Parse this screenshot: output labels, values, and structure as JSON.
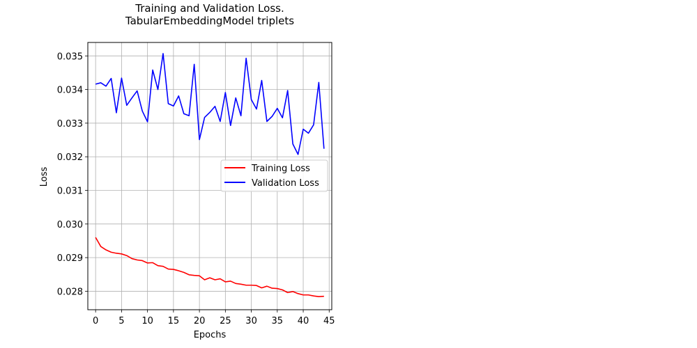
{
  "chart_data": {
    "type": "line",
    "title": [
      "Training and Validation Loss.",
      "TabularEmbeddingModel triplets"
    ],
    "xlabel": "Epochs",
    "ylabel": "Loss",
    "xlim": [
      -1.5,
      45.5
    ],
    "ylim": [
      0.02745,
      0.0354
    ],
    "x_ticks": [
      0,
      5,
      10,
      15,
      20,
      25,
      30,
      35,
      40,
      45
    ],
    "y_ticks": [
      0.028,
      0.029,
      0.03,
      0.031,
      0.032,
      0.033,
      0.034,
      0.035
    ],
    "y_tick_labels": [
      "0.028",
      "0.029",
      "0.030",
      "0.031",
      "0.032",
      "0.033",
      "0.034",
      "0.035"
    ],
    "grid": true,
    "legend": "center-right",
    "series": [
      {
        "name": "Training Loss",
        "color": "#ff0000",
        "x": [
          0,
          1,
          2,
          3,
          4,
          5,
          6,
          7,
          8,
          9,
          10,
          11,
          12,
          13,
          14,
          15,
          16,
          17,
          18,
          19,
          20,
          21,
          22,
          23,
          24,
          25,
          26,
          27,
          28,
          29,
          30,
          31,
          32,
          33,
          34,
          35,
          36,
          37,
          38,
          39,
          40,
          41,
          42,
          43,
          44
        ],
        "values": [
          0.0296,
          0.02933,
          0.02923,
          0.02916,
          0.02913,
          0.02911,
          0.02906,
          0.02897,
          0.02893,
          0.02891,
          0.02884,
          0.02885,
          0.02876,
          0.02874,
          0.02866,
          0.02865,
          0.02861,
          0.02856,
          0.02849,
          0.02847,
          0.02846,
          0.02834,
          0.0284,
          0.02834,
          0.02837,
          0.02828,
          0.0283,
          0.02823,
          0.02821,
          0.02818,
          0.02818,
          0.02817,
          0.0281,
          0.02815,
          0.02809,
          0.02808,
          0.02804,
          0.02796,
          0.02799,
          0.02793,
          0.02789,
          0.02789,
          0.02786,
          0.02784,
          0.02785
        ]
      },
      {
        "name": "Validation Loss",
        "color": "#0000ff",
        "x": [
          0,
          1,
          2,
          3,
          4,
          5,
          6,
          7,
          8,
          9,
          10,
          11,
          12,
          13,
          14,
          15,
          16,
          17,
          18,
          19,
          20,
          21,
          22,
          23,
          24,
          25,
          26,
          27,
          28,
          29,
          30,
          31,
          32,
          33,
          34,
          35,
          36,
          37,
          38,
          39,
          40,
          41,
          42,
          43,
          44
        ],
        "values": [
          0.03416,
          0.0342,
          0.0341,
          0.03433,
          0.03331,
          0.03434,
          0.03353,
          0.03375,
          0.03396,
          0.03336,
          0.03304,
          0.03458,
          0.034,
          0.03507,
          0.03358,
          0.03351,
          0.03381,
          0.03328,
          0.03322,
          0.03475,
          0.03251,
          0.03317,
          0.03332,
          0.0335,
          0.03305,
          0.03391,
          0.03293,
          0.03375,
          0.03322,
          0.03493,
          0.0337,
          0.03342,
          0.03427,
          0.03305,
          0.0332,
          0.03344,
          0.03316,
          0.03397,
          0.03238,
          0.03207,
          0.03282,
          0.0327,
          0.03295,
          0.03421,
          0.03224
        ]
      }
    ]
  }
}
